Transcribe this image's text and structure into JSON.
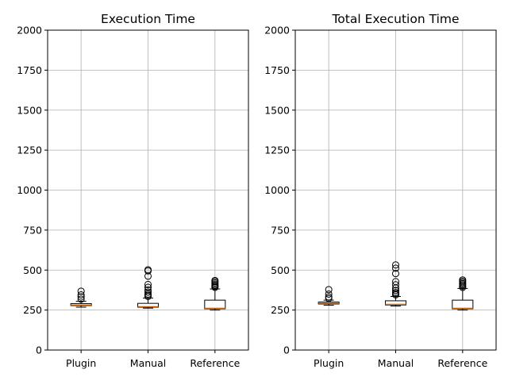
{
  "chart_data": [
    {
      "type": "box",
      "title": "Execution Time",
      "categories": [
        "Plugin",
        "Manual",
        "Reference"
      ],
      "ylim": [
        0,
        2000
      ],
      "yticks": [
        0,
        250,
        500,
        750,
        1000,
        1250,
        1500,
        1750,
        2000
      ],
      "grid": true,
      "boxes": [
        {
          "q1": 278,
          "median": 282,
          "q3": 290,
          "whisker_low": 268,
          "whisker_high": 305,
          "outliers": [
            318,
            332,
            345,
            368
          ]
        },
        {
          "q1": 268,
          "median": 272,
          "q3": 292,
          "whisker_low": 262,
          "whisker_high": 325,
          "outliers": [
            335,
            342,
            350,
            362,
            375,
            392,
            410,
            462,
            495,
            502
          ]
        },
        {
          "q1": 258,
          "median": 262,
          "q3": 312,
          "whisker_low": 250,
          "whisker_high": 382,
          "outliers": [
            392,
            398,
            405,
            412,
            420,
            428,
            435
          ]
        }
      ]
    },
    {
      "type": "box",
      "title": "Total Execution Time",
      "categories": [
        "Plugin",
        "Manual",
        "Reference"
      ],
      "ylim": [
        0,
        2000
      ],
      "yticks": [
        0,
        250,
        500,
        750,
        1000,
        1250,
        1500,
        1750,
        2000
      ],
      "grid": true,
      "boxes": [
        {
          "q1": 288,
          "median": 293,
          "q3": 300,
          "whisker_low": 280,
          "whisker_high": 312,
          "outliers": [
            322,
            332,
            350,
            378
          ]
        },
        {
          "q1": 282,
          "median": 287,
          "q3": 308,
          "whisker_low": 275,
          "whisker_high": 335,
          "outliers": [
            345,
            352,
            360,
            372,
            388,
            408,
            428,
            478,
            512,
            532
          ]
        },
        {
          "q1": 258,
          "median": 262,
          "q3": 312,
          "whisker_low": 250,
          "whisker_high": 385,
          "outliers": [
            392,
            400,
            408,
            415,
            422,
            430,
            438
          ]
        }
      ]
    }
  ]
}
